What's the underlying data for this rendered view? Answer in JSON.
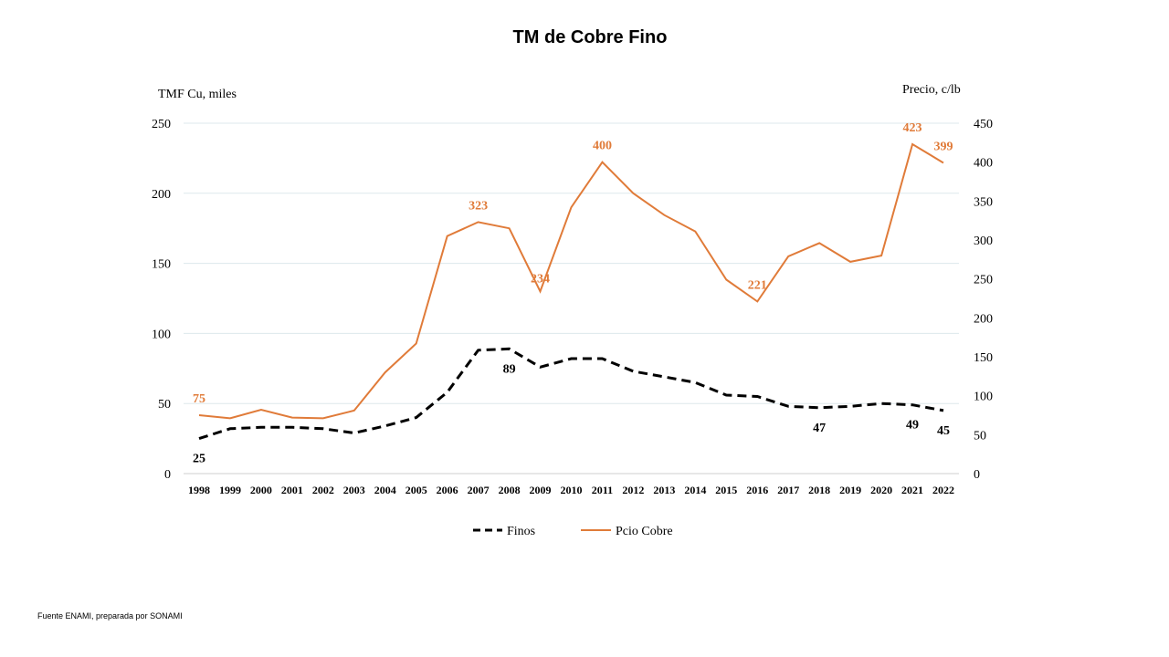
{
  "chart_data": {
    "type": "line",
    "title": "TM de Cobre Fino",
    "ylabel_left": "TMF Cu, miles",
    "ylabel_right": "Precio, c/lb",
    "ylim_left": [
      0,
      250
    ],
    "ylim_right": [
      0,
      450
    ],
    "yticks_left": [
      "0",
      "50",
      "100",
      "150",
      "200",
      "250"
    ],
    "yticks_right": [
      "0",
      "50",
      "100",
      "150",
      "200",
      "250",
      "300",
      "350",
      "400",
      "450"
    ],
    "categories": [
      "1998",
      "1999",
      "2000",
      "2001",
      "2002",
      "2003",
      "2004",
      "2005",
      "2006",
      "2007",
      "2008",
      "2009",
      "2010",
      "2011",
      "2012",
      "2013",
      "2014",
      "2015",
      "2016",
      "2017",
      "2018",
      "2019",
      "2020",
      "2021",
      "2022"
    ],
    "grid": true,
    "legend_position": "bottom",
    "series": [
      {
        "name": "Finos",
        "axis": "left",
        "color": "#000000",
        "style": "dashed",
        "values": [
          25,
          32,
          33,
          33,
          32,
          29,
          34,
          40,
          58,
          88,
          89,
          76,
          82,
          82,
          73,
          69,
          65,
          56,
          55,
          48,
          47,
          48,
          50,
          49,
          45
        ],
        "data_labels": [
          {
            "index": 0,
            "text": "25"
          },
          {
            "index": 10,
            "text": "89"
          },
          {
            "index": 20,
            "text": "47"
          },
          {
            "index": 23,
            "text": "49"
          },
          {
            "index": 24,
            "text": "45"
          }
        ]
      },
      {
        "name": "Pcio Cobre",
        "axis": "right",
        "color": "#E07B39",
        "style": "solid",
        "values": [
          75,
          71,
          82,
          72,
          71,
          81,
          130,
          167,
          305,
          323,
          315,
          234,
          342,
          400,
          360,
          332,
          311,
          249,
          221,
          279,
          296,
          272,
          280,
          423,
          399
        ],
        "data_labels": [
          {
            "index": 0,
            "text": "75"
          },
          {
            "index": 9,
            "text": "323"
          },
          {
            "index": 11,
            "text": "234"
          },
          {
            "index": 13,
            "text": "400"
          },
          {
            "index": 18,
            "text": "221"
          },
          {
            "index": 23,
            "text": "423"
          },
          {
            "index": 24,
            "text": "399"
          }
        ]
      }
    ]
  },
  "source_note": "Fuente ENAMI, preparada por SONAMI"
}
